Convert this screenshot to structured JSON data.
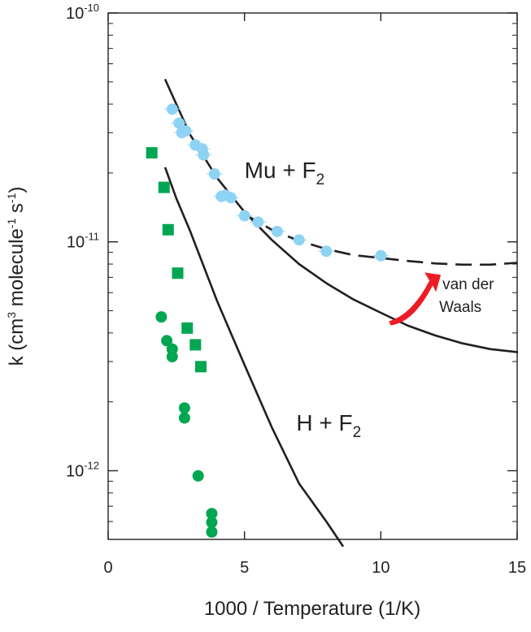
{
  "chart_data": {
    "type": "scatter",
    "title": "",
    "xlabel": "1000 / Temperature (1/K)",
    "ylabel_parts": {
      "main": "k (cm",
      "sup1": "3",
      "mid": " molecule",
      "sup2": "-1",
      "sep": " s",
      "sup3": "-1",
      "end": ")"
    },
    "xlim": [
      0,
      15
    ],
    "ylim_log10": [
      -12.3,
      -10
    ],
    "x_ticks": [
      0,
      5,
      10,
      15
    ],
    "x_tick_labels": [
      "0",
      "5",
      "10",
      "15"
    ],
    "y_major_ticks": [
      1e-12,
      1e-11,
      1e-10
    ],
    "y_tick_labels": [
      {
        "base": "10",
        "exp": "-12"
      },
      {
        "base": "10",
        "exp": "-11"
      },
      {
        "base": "10",
        "exp": "-10"
      }
    ],
    "grid": false,
    "colors": {
      "mu_points": "#8fd3f4",
      "h_points": "#00a651",
      "curves": "#231f20",
      "arrow": "#ed1c24"
    },
    "series": [
      {
        "marker": "circle",
        "color": "#8fd3f4",
        "error_bars": true,
        "points": [
          [
            2.35,
            3.8e-11
          ],
          [
            2.6,
            3.3e-11
          ],
          [
            2.7,
            3e-11
          ],
          [
            2.85,
            3.05e-11
          ],
          [
            3.2,
            2.65e-11
          ],
          [
            3.45,
            2.55e-11
          ],
          [
            3.5,
            2.4e-11
          ],
          [
            3.9,
            1.98e-11
          ],
          [
            4.15,
            1.58e-11
          ],
          [
            4.3,
            1.6e-11
          ],
          [
            4.5,
            1.56e-11
          ],
          [
            5.0,
            1.3e-11
          ],
          [
            5.5,
            1.22e-11
          ],
          [
            6.2,
            1.11e-11
          ],
          [
            7.0,
            1.02e-11
          ],
          [
            8.0,
            9.1e-12
          ],
          [
            10.0,
            8.7e-12
          ]
        ]
      },
      {
        "marker": "square",
        "color": "#00a651",
        "points": [
          [
            1.6,
            2.45e-11
          ],
          [
            2.05,
            1.73e-11
          ],
          [
            2.2,
            1.13e-11
          ],
          [
            2.55,
            7.3e-12
          ],
          [
            2.9,
            4.2e-12
          ],
          [
            3.2,
            3.55e-12
          ],
          [
            3.4,
            2.85e-12
          ]
        ]
      },
      {
        "marker": "circle",
        "color": "#00a651",
        "points": [
          [
            1.95,
            4.7e-12
          ],
          [
            2.15,
            3.7e-12
          ],
          [
            2.35,
            3.4e-12
          ],
          [
            2.35,
            3.15e-12
          ],
          [
            2.8,
            1.88e-12
          ],
          [
            2.8,
            1.7e-12
          ],
          [
            3.3,
            9.5e-13
          ],
          [
            3.8,
            6.5e-13
          ],
          [
            3.8,
            5.95e-13
          ],
          [
            3.8,
            5.4e-13
          ]
        ]
      },
      {
        "marker": "line",
        "style": "solid",
        "color": "#231f20",
        "points": [
          [
            2.1,
            5.1e-11
          ],
          [
            2.5,
            4e-11
          ],
          [
            3.0,
            2.95e-11
          ],
          [
            4.0,
            1.9e-11
          ],
          [
            5.0,
            1.35e-11
          ],
          [
            6.0,
            1.02e-11
          ],
          [
            7.0,
            8e-12
          ],
          [
            8.0,
            6.6e-12
          ],
          [
            9.0,
            5.6e-12
          ],
          [
            10.0,
            4.9e-12
          ],
          [
            11.0,
            4.3e-12
          ],
          [
            12.0,
            3.9e-12
          ],
          [
            13.0,
            3.6e-12
          ],
          [
            14.0,
            3.4e-12
          ],
          [
            15.0,
            3.3e-12
          ]
        ]
      },
      {
        "marker": "line",
        "style": "dashed",
        "color": "#231f20",
        "points": [
          [
            5.0,
            1.32e-11
          ],
          [
            6.0,
            1.13e-11
          ],
          [
            7.0,
            1.01e-11
          ],
          [
            8.0,
            9.3e-12
          ],
          [
            9.0,
            8.75e-12
          ],
          [
            10.0,
            8.5e-12
          ],
          [
            11.0,
            8.25e-12
          ],
          [
            12.0,
            8.05e-12
          ],
          [
            13.0,
            7.95e-12
          ],
          [
            14.0,
            7.95e-12
          ],
          [
            15.0,
            8.1e-12
          ]
        ]
      },
      {
        "marker": "line",
        "style": "solid",
        "color": "#231f20",
        "points": [
          [
            2.1,
            2.1e-11
          ],
          [
            2.5,
            1.55e-11
          ],
          [
            3.0,
            1.12e-11
          ],
          [
            4.0,
            5.5e-12
          ],
          [
            5.0,
            2.9e-12
          ],
          [
            6.0,
            1.55e-12
          ],
          [
            7.0,
            8.8e-13
          ],
          [
            8.0,
            6e-13
          ],
          [
            8.6,
            4.7e-13
          ]
        ]
      }
    ],
    "annotations": [
      {
        "id": "mu",
        "base": "Mu + F",
        "sub": "2",
        "x": 5.0,
        "y": 1.9e-11
      },
      {
        "id": "h",
        "base": "H + F",
        "sub": "2",
        "x": 6.9,
        "y": 1.5e-12
      },
      {
        "id": "vdw",
        "lines": [
          "van der",
          "Waals"
        ],
        "x": 12.2,
        "y": 6.2e-12
      }
    ],
    "arrow": {
      "from": [
        10.3,
        4.5e-12
      ],
      "to": [
        12.2,
        7e-12
      ]
    }
  }
}
